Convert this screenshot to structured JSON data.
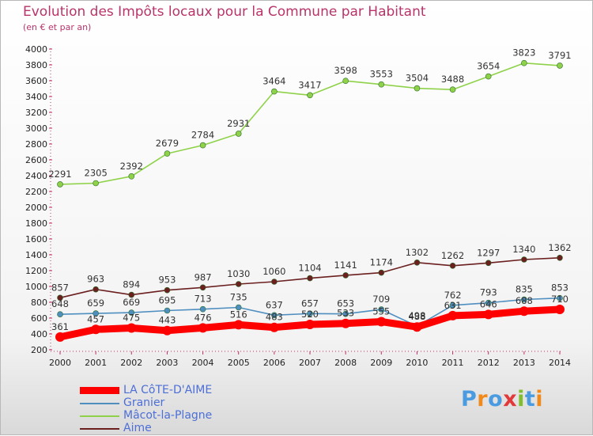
{
  "header": {
    "title": "Evolution des Impôts locaux pour la Commune par Habitant",
    "subtitle": "(en € et par an)"
  },
  "brand": {
    "text": "Proxiti",
    "colors": [
      "#4a9be0",
      "#f08a1c",
      "#4a9be0",
      "#e03a3a",
      "#7fbf2e",
      "#4a9be0",
      "#f08a1c"
    ]
  },
  "chart_data": {
    "type": "line",
    "x": [
      "2000",
      "2001",
      "2002",
      "2003",
      "2004",
      "2005",
      "2006",
      "2007",
      "2008",
      "2009",
      "2010",
      "2011",
      "2012",
      "2013",
      "2014"
    ],
    "ylim": [
      200,
      4000
    ],
    "yticks": [
      200,
      400,
      600,
      800,
      1000,
      1200,
      1400,
      1600,
      1800,
      2000,
      2200,
      2400,
      2600,
      2800,
      3000,
      3200,
      3400,
      3600,
      3800,
      4000
    ],
    "grid": false,
    "legend_position": "bottom-left",
    "series": [
      {
        "name": "LA CôTE-D'AIME",
        "color": "#ff0000",
        "values": [
          361,
          457,
          475,
          443,
          476,
          516,
          483,
          520,
          533,
          555,
          488,
          631,
          646,
          688,
          710
        ],
        "labels": [
          "361",
          "457",
          "475",
          "443",
          "476",
          "516",
          "483",
          "520",
          "533",
          "555",
          "488",
          "631",
          "646",
          "688",
          "710"
        ]
      },
      {
        "name": "Granier",
        "color": "#4f8fc0",
        "values": [
          648,
          659,
          669,
          695,
          713,
          735,
          637,
          657,
          653,
          709,
          498,
          762,
          793,
          835,
          853
        ],
        "labels": [
          "648",
          "659",
          "669",
          "695",
          "713",
          "735",
          "637",
          "657",
          "653",
          "709",
          "498",
          "762",
          "793",
          "835",
          "853"
        ]
      },
      {
        "name": "Mâcot-la-Plagne",
        "color": "#8fd24a",
        "values": [
          2291,
          2305,
          2392,
          2679,
          2784,
          2931,
          3464,
          3417,
          3598,
          3553,
          3504,
          3488,
          3654,
          3823,
          3791
        ],
        "labels": [
          "2291",
          "2305",
          "2392",
          "2679",
          "2784",
          "2931",
          "3464",
          "3417",
          "3598",
          "3553",
          "3504",
          "3488",
          "3654",
          "3823",
          "3791"
        ]
      },
      {
        "name": "Aime",
        "color": "#6b1f1f",
        "values": [
          857,
          963,
          894,
          953,
          987,
          1030,
          1060,
          1104,
          1141,
          1174,
          1302,
          1262,
          1297,
          1340,
          1362
        ],
        "labels": [
          "857",
          "963",
          "894",
          "953",
          "987",
          "1030",
          "1060",
          "1104",
          "1141",
          "1174",
          "1302",
          "1262",
          "1297",
          "1340",
          "1362"
        ]
      }
    ]
  }
}
